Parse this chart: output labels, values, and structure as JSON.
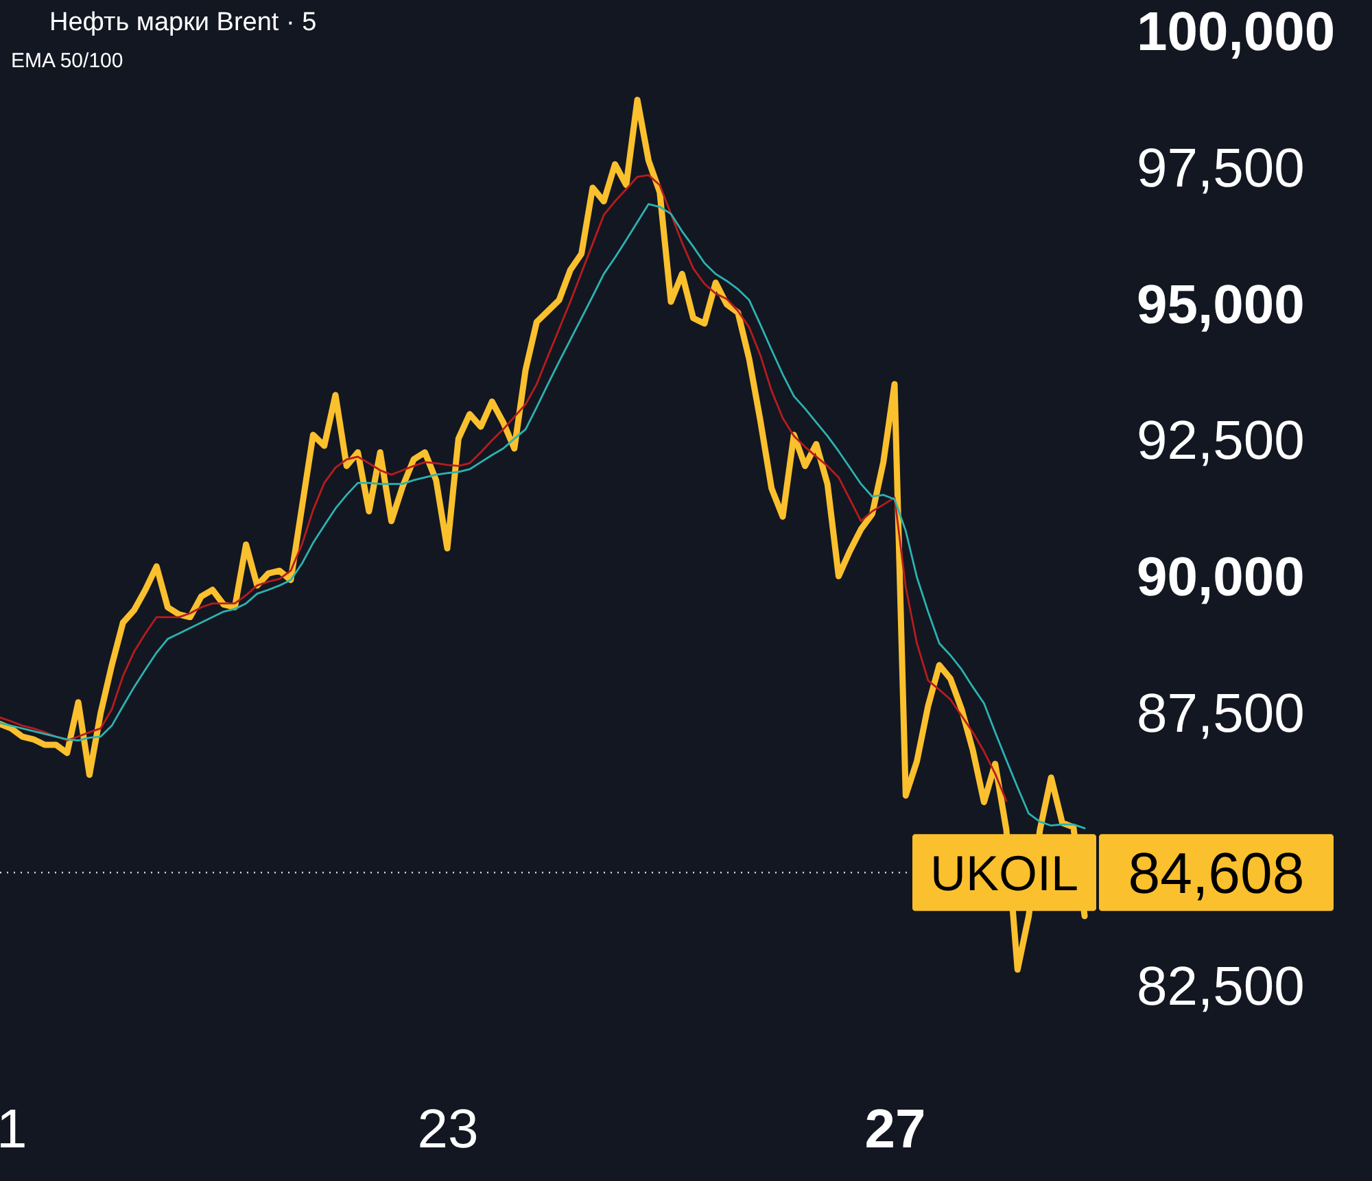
{
  "chart_data": {
    "type": "line",
    "title": "Нефть марки Brent · 5",
    "subtitle": "EMA 50/100",
    "line_style": "solid",
    "categories": [
      null,
      "1",
      null,
      null,
      null,
      null,
      null,
      null,
      null,
      null,
      null,
      null,
      null,
      null,
      null,
      null,
      null,
      null,
      null,
      null,
      null,
      null,
      null,
      null,
      null,
      null,
      null,
      null,
      null,
      null,
      null,
      null,
      null,
      null,
      null,
      null,
      null,
      null,
      null,
      null,
      "23",
      null,
      null,
      null,
      null,
      null,
      null,
      null,
      null,
      null,
      null,
      null,
      null,
      null,
      null,
      null,
      null,
      null,
      null,
      null,
      null,
      null,
      null,
      null,
      null,
      null,
      null,
      null,
      null,
      null,
      null,
      null,
      null,
      null,
      null,
      null,
      null,
      null,
      null,
      null,
      "27",
      null,
      null,
      null,
      null,
      null,
      null,
      null,
      null,
      null,
      null,
      null,
      null,
      null,
      null,
      null,
      null,
      null
    ],
    "ylim": [
      82500,
      100600
    ],
    "yticks": [
      {
        "value": 82500,
        "label": "82,500"
      },
      {
        "value": 87500,
        "label": "87,500"
      },
      {
        "value": 90000,
        "label": "90,000"
      },
      {
        "value": 92500,
        "label": "92,500"
      },
      {
        "value": 95000,
        "label": "95,000"
      },
      {
        "value": 97500,
        "label": "97,500"
      },
      {
        "value": 100000,
        "label": "100,000"
      }
    ],
    "series": [
      {
        "color": "#fbc02d",
        "values": [
          87330,
          87250,
          87100,
          87050,
          86950,
          86950,
          86800,
          87730,
          86400,
          87530,
          88410,
          89190,
          89420,
          89790,
          90220,
          89470,
          89340,
          89290,
          89670,
          89790,
          89520,
          89470,
          90620,
          89870,
          90090,
          90140,
          89970,
          91300,
          92630,
          92430,
          93360,
          92060,
          92310,
          91230,
          92310,
          91050,
          91680,
          92180,
          92310,
          91800,
          90550,
          92560,
          93010,
          92780,
          93240,
          92860,
          92380,
          93820,
          94700,
          94900,
          95100,
          95650,
          95950,
          97160,
          96910,
          97590,
          97210,
          98770,
          97660,
          97080,
          95070,
          95580,
          94770,
          94670,
          95420,
          95020,
          94870,
          94020,
          92890,
          91650,
          91130,
          92630,
          92060,
          92460,
          91730,
          90040,
          90500,
          90900,
          91180,
          92130,
          93560,
          86020,
          86650,
          87660,
          88410,
          88160,
          87600,
          86850,
          85900,
          86600,
          85390,
          82830,
          83810,
          85390,
          86350,
          85520,
          85440,
          83810
        ]
      },
      {
        "color": "#b71c1c",
        "values": [
          87450,
          87380,
          87300,
          87250,
          87180,
          87100,
          87030,
          87100,
          87180,
          87250,
          87600,
          88210,
          88660,
          88990,
          89290,
          89290,
          89290,
          89360,
          89470,
          89540,
          89540,
          89540,
          89690,
          89870,
          89940,
          89990,
          90140,
          90620,
          91250,
          91750,
          92030,
          92180,
          92230,
          92110,
          91980,
          91900,
          91980,
          92060,
          92130,
          92110,
          92080,
          92060,
          92110,
          92310,
          92530,
          92730,
          92960,
          93190,
          93560,
          94070,
          94570,
          95070,
          95600,
          96130,
          96660,
          96910,
          97130,
          97360,
          97390,
          97210,
          96680,
          96150,
          95680,
          95400,
          95220,
          95120,
          94900,
          94600,
          94090,
          93440,
          92940,
          92610,
          92410,
          92230,
          92060,
          91850,
          91450,
          91050,
          91230,
          91350,
          91480,
          89840,
          88810,
          88130,
          87960,
          87780,
          87480,
          87180,
          86830,
          86420,
          85920,
          null,
          null,
          null,
          null,
          null,
          null,
          null
        ]
      },
      {
        "color": "#2bb3b1",
        "values": [
          87350,
          87300,
          87250,
          87200,
          87150,
          87100,
          87050,
          87030,
          87080,
          87100,
          87300,
          87660,
          88010,
          88330,
          88640,
          88890,
          88990,
          89090,
          89190,
          89290,
          89390,
          89440,
          89540,
          89720,
          89790,
          89870,
          89970,
          90270,
          90650,
          90970,
          91280,
          91530,
          91750,
          91750,
          91730,
          91730,
          91730,
          91800,
          91850,
          91900,
          91930,
          91950,
          92000,
          92130,
          92260,
          92380,
          92560,
          92730,
          93140,
          93560,
          93970,
          94370,
          94770,
          95170,
          95580,
          95880,
          96200,
          96530,
          96860,
          96810,
          96680,
          96360,
          96080,
          95780,
          95580,
          95450,
          95300,
          95100,
          94650,
          94190,
          93740,
          93340,
          93110,
          92860,
          92610,
          92330,
          92030,
          91730,
          91500,
          91530,
          91450,
          90870,
          90020,
          89390,
          88810,
          88590,
          88330,
          88010,
          87710,
          87180,
          86670,
          86170,
          85690,
          85540,
          85470,
          85490,
          85490,
          85420
        ]
      }
    ],
    "ref_lines": [
      {
        "axis": "y",
        "value": 84608,
        "label": "UKOIL",
        "line_style": "dotted",
        "color": "#d1d4dc"
      }
    ],
    "annotations": [
      "84,608"
    ]
  }
}
